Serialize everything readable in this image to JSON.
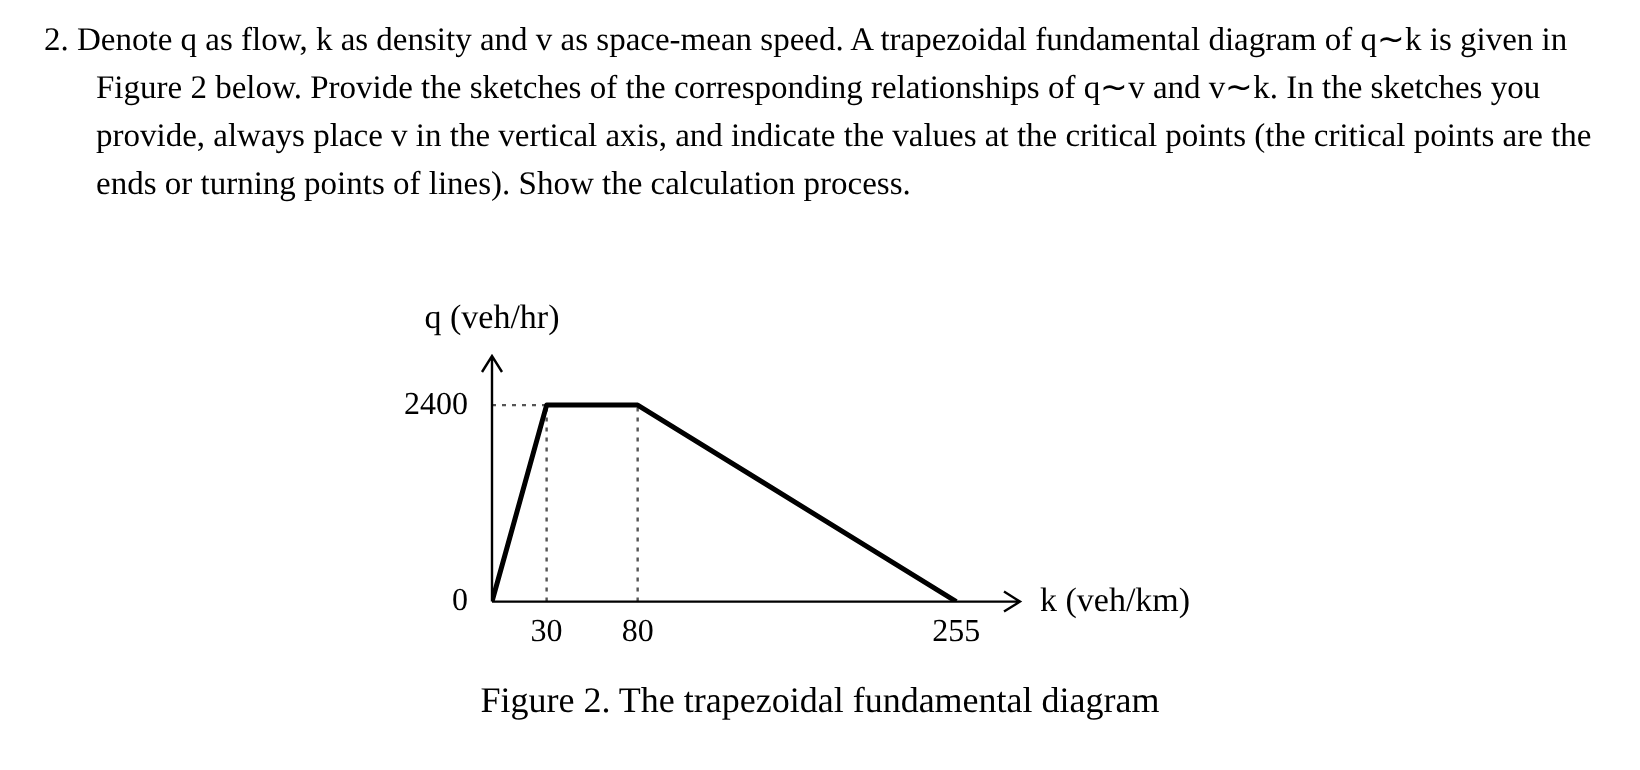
{
  "chart_data": {
    "type": "line",
    "title": "2.  Denote q as flow, k as density and v as space-mean speed. A trapezoidal fundamental diagram of q∼k is given in Figure 2 below. Provide the sketches of the corresponding relationships of q∼v and v∼k. In the sketches you provide, always place v in the vertical axis, and indicate the values at the critical points (the critical points are the ends or turning points of lines). Show the calculation process.",
    "xlabel": "k (veh/km)",
    "ylabel": "q (veh/hr)",
    "annotations": [
      "Figure 2. The trapezoidal fundamental diagram"
    ],
    "xlim": [
      0,
      290
    ],
    "xticks": [
      30,
      80,
      255
    ],
    "ylim": [
      0,
      3000
    ],
    "yticks": [
      0,
      2400
    ],
    "series": [
      {
        "color": "#000000",
        "x": [
          0,
          30,
          80,
          255
        ],
        "values": [
          0,
          2400,
          2400,
          0
        ]
      },
      {
        "color": "#555555",
        "line_style": "dotted",
        "x": [
          30,
          30
        ],
        "values": [
          0,
          2400
        ]
      },
      {
        "color": "#555555",
        "line_style": "dotted",
        "x": [
          80,
          80
        ],
        "values": [
          0,
          2400
        ]
      },
      {
        "color": "#555555",
        "line_style": "dotted",
        "x": [
          0,
          30
        ],
        "values": [
          2400,
          2400
        ]
      }
    ]
  }
}
